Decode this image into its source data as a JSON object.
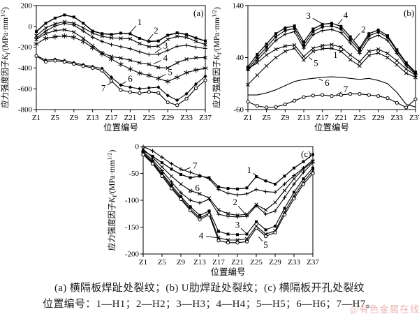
{
  "caption": {
    "line1": "(a) 横隔板焊趾处裂纹；(b) U肋焊趾处裂纹；(c) 横隔板开孔处裂纹",
    "line2": "位置编号：1—H1；2—H2；3—H3；4—H4；5—H5；6—H6；7—H7。"
  },
  "watermark": {
    "text": "@有色金属在线",
    "color": "#e9a9a9"
  },
  "chart_data": [
    {
      "type": "line",
      "panel_tag": "(a)",
      "xlabel": "位置编号",
      "ylabel_parts": [
        {
          "t": "应力强度因子"
        },
        {
          "t": "K",
          "i": true
        },
        {
          "t": "I",
          "sub": true
        },
        {
          "t": "/(MPa·mm"
        },
        {
          "t": "1/2",
          "sup": true
        },
        {
          "t": ")"
        }
      ],
      "xlim": [
        1,
        37
      ],
      "ylim": [
        -800,
        200
      ],
      "y_ticks": [
        200,
        0,
        -200,
        -400,
        -600,
        -800
      ],
      "x_ticks": {
        "values": [
          1,
          5,
          9,
          13,
          17,
          21,
          25,
          29,
          33,
          37
        ],
        "labels": [
          "Z1",
          "Z5",
          "Z9",
          "Z13",
          "Z17",
          "Z21",
          "Z25",
          "Z29",
          "Z33",
          "Z37"
        ]
      },
      "x": [
        1,
        3,
        5,
        7,
        9,
        11,
        13,
        15,
        17,
        19,
        21,
        23,
        25,
        27,
        29,
        31,
        33,
        35,
        37
      ],
      "grid": false,
      "series": [
        {
          "name": "1",
          "marker": "square",
          "w": 1.5,
          "values": [
            -50,
            30,
            80,
            110,
            90,
            30,
            -45,
            -70,
            -78,
            -65,
            -72,
            -115,
            -145,
            -140,
            -85,
            -62,
            -78,
            -112,
            -140
          ]
        },
        {
          "name": "2",
          "marker": "x",
          "values": [
            -90,
            -15,
            25,
            45,
            30,
            -15,
            -65,
            -95,
            -110,
            -115,
            -120,
            -165,
            -195,
            -190,
            -125,
            -95,
            -105,
            -145,
            -175
          ]
        },
        {
          "name": "3",
          "marker": "plus",
          "values": [
            -115,
            -45,
            5,
            28,
            12,
            -45,
            -105,
            -145,
            -175,
            -195,
            -215,
            -245,
            -270,
            -268,
            -230,
            -192,
            -182,
            -200,
            -212
          ]
        },
        {
          "name": "4",
          "marker": "x",
          "values": [
            -125,
            -70,
            -40,
            -32,
            -55,
            -115,
            -185,
            -255,
            -290,
            -305,
            -325,
            -350,
            -365,
            -395,
            -400,
            -350,
            -315,
            -302,
            -300
          ]
        },
        {
          "name": "5",
          "marker": "asterisk",
          "values": [
            -170,
            -115,
            -100,
            -92,
            -105,
            -145,
            -205,
            -265,
            -315,
            -365,
            -410,
            -450,
            -472,
            -502,
            -530,
            -490,
            -445,
            -420,
            -402
          ]
        },
        {
          "name": "6",
          "marker": "diamond",
          "values": [
            -280,
            -325,
            -318,
            -330,
            -350,
            -370,
            -388,
            -405,
            -490,
            -565,
            -585,
            -600,
            -592,
            -585,
            -665,
            -710,
            -648,
            -555,
            -480
          ]
        },
        {
          "name": "7",
          "marker": "circle",
          "values": [
            -285,
            -340,
            -330,
            -342,
            -362,
            -382,
            -400,
            -425,
            -525,
            -612,
            -632,
            -642,
            -630,
            -640,
            -730,
            -758,
            -695,
            -595,
            -518
          ]
        }
      ],
      "curve_labels": [
        {
          "t": "1",
          "x": 23,
          "y": 40,
          "tx": 20.8,
          "ty": -68
        },
        {
          "t": "2",
          "x": 26.5,
          "y": -40,
          "tx": 24.5,
          "ty": -150
        },
        {
          "t": "3",
          "x": 28.5,
          "y": -185,
          "tx": 26.3,
          "ty": -255
        },
        {
          "t": "4",
          "x": 28.5,
          "y": -308,
          "tx": 26,
          "ty": -360
        },
        {
          "t": "5",
          "x": 29.5,
          "y": -442,
          "tx": 27,
          "ty": -495
        },
        {
          "t": "6",
          "x": 21,
          "y": -505,
          "tx": 19.2,
          "ty": -558
        },
        {
          "t": "7",
          "x": 15.3,
          "y": -595,
          "tx": 17.2,
          "ty": -530
        }
      ]
    },
    {
      "type": "line",
      "panel_tag": "(b)",
      "xlabel": "位置编号",
      "ylabel_parts": [
        {
          "t": "应力强度因子"
        },
        {
          "t": "K",
          "i": true
        },
        {
          "t": "I",
          "sub": true
        },
        {
          "t": "/(MPa·mm"
        },
        {
          "t": "1/2",
          "sup": true
        },
        {
          "t": ")"
        }
      ],
      "xlim": [
        1,
        37
      ],
      "ylim": [
        -60,
        140
      ],
      "y_ticks": [
        140,
        40,
        -60
      ],
      "x_ticks": {
        "values": [
          1,
          5,
          9,
          13,
          17,
          21,
          25,
          29,
          33,
          37
        ],
        "labels": [
          "Z1",
          "Z5",
          "Z9",
          "Z13",
          "Z17",
          "Z21",
          "Z25",
          "Z29",
          "Z33",
          "Z37"
        ]
      },
      "x": [
        1,
        3,
        5,
        7,
        9,
        11,
        13,
        15,
        17,
        19,
        21,
        23,
        25,
        27,
        29,
        31,
        33,
        35,
        37
      ],
      "grid": false,
      "series": [
        {
          "name": "3",
          "marker": "square",
          "w": 1.3,
          "values": [
            22,
            46,
            66,
            86,
            97,
            101,
            70,
            95,
            104,
            106,
            100,
            80,
            58,
            86,
            93,
            82,
            55,
            30,
            12
          ]
        },
        {
          "name": "4",
          "marker": "square",
          "values": [
            18,
            40,
            60,
            80,
            92,
            96,
            64,
            90,
            99,
            101,
            95,
            74,
            54,
            82,
            89,
            79,
            53,
            28,
            10
          ]
        },
        {
          "name": "2",
          "marker": "plus",
          "values": [
            15,
            35,
            54,
            73,
            85,
            90,
            58,
            84,
            92,
            94,
            88,
            68,
            48,
            76,
            83,
            73,
            48,
            24,
            8
          ]
        },
        {
          "name": "1",
          "marker": "x",
          "values": [
            18,
            30,
            45,
            56,
            62,
            64,
            42,
            58,
            63,
            65,
            60,
            45,
            32,
            52,
            56,
            48,
            34,
            18,
            6
          ]
        },
        {
          "name": "5",
          "marker": "x",
          "values": [
            -12,
            6,
            24,
            40,
            52,
            58,
            35,
            52,
            57,
            58,
            52,
            36,
            24,
            44,
            49,
            40,
            26,
            10,
            2
          ]
        },
        {
          "name": "6",
          "marker": "none",
          "values": [
            -32,
            -32,
            -28,
            -22,
            -14,
            -6,
            -2,
            0,
            2,
            3,
            2,
            0,
            -2,
            0,
            -4,
            -10,
            -27,
            -50,
            -55
          ]
        },
        {
          "name": "7",
          "marker": "circle",
          "values": [
            -45,
            -53,
            -56,
            -55,
            -50,
            -43,
            -36,
            -33,
            -32,
            -34,
            -32,
            -30,
            -30,
            -32,
            -34,
            -38,
            -47,
            -56,
            -40
          ]
        }
      ],
      "curve_labels": [
        {
          "t": "3",
          "x": 14,
          "y": 120,
          "tx": 16.8,
          "ty": 106
        },
        {
          "t": "4",
          "x": 22,
          "y": 121,
          "tx": 20.3,
          "ty": 104
        },
        {
          "t": "2",
          "x": 25.8,
          "y": 94,
          "tx": 23.8,
          "ty": 74
        },
        {
          "t": "1",
          "x": 19.8,
          "y": 45,
          "tx": 21.8,
          "ty": 56
        },
        {
          "t": "5",
          "x": 15.6,
          "y": 29,
          "tx": 14.2,
          "ty": 40
        },
        {
          "t": "6",
          "x": 18,
          "y": -9,
          "tx": 16.3,
          "ty": -1
        },
        {
          "t": "7",
          "x": 22,
          "y": -21,
          "tx": 20,
          "ty": -32
        }
      ]
    },
    {
      "type": "line",
      "panel_tag": "(c)",
      "xlabel": "位置编号",
      "ylabel_parts": [
        {
          "t": "应力强度因子"
        },
        {
          "t": "K",
          "i": true
        },
        {
          "t": "I",
          "sub": true
        },
        {
          "t": "/(MPa·mm"
        },
        {
          "t": "1/2",
          "sup": true
        },
        {
          "t": ")"
        }
      ],
      "xlim": [
        1,
        37
      ],
      "ylim": [
        -200,
        0
      ],
      "y_ticks": [
        0,
        -50,
        -100,
        -150,
        -200
      ],
      "x_ticks": {
        "values": [
          1,
          5,
          9,
          13,
          17,
          21,
          25,
          29,
          33,
          37
        ],
        "labels": [
          "Z1",
          "Z5",
          "Z9",
          "Z13",
          "Z17",
          "Z21",
          "Z25",
          "Z29",
          "Z33",
          "Z37"
        ]
      },
      "x": [
        1,
        3,
        5,
        7,
        9,
        11,
        13,
        15,
        17,
        19,
        21,
        23,
        25,
        27,
        29,
        31,
        33,
        35,
        37
      ],
      "grid": false,
      "series": [
        {
          "name": "7",
          "marker": "plus",
          "values": [
            0,
            -8,
            -20,
            -32,
            -42,
            -48,
            -54,
            -60,
            -80,
            -87,
            -90,
            -88,
            -80,
            -84,
            -85,
            -70,
            -54,
            -40,
            -25
          ]
        },
        {
          "name": "1",
          "marker": "square",
          "w": 1.3,
          "values": [
            -8,
            -18,
            -30,
            -42,
            -52,
            -58,
            -55,
            -58,
            -75,
            -78,
            -79,
            -77,
            -56,
            -64,
            -70,
            -55,
            -40,
            -28,
            -15
          ]
        },
        {
          "name": "6",
          "marker": "x",
          "values": [
            -5,
            -20,
            -38,
            -55,
            -70,
            -82,
            -88,
            -96,
            -118,
            -125,
            -128,
            -126,
            -108,
            -118,
            -104,
            -82,
            -60,
            -42,
            -28
          ]
        },
        {
          "name": "2",
          "marker": "plus",
          "values": [
            -10,
            -25,
            -45,
            -66,
            -86,
            -100,
            -105,
            -98,
            -126,
            -130,
            -131,
            -130,
            -110,
            -126,
            -120,
            -95,
            -70,
            -48,
            -30
          ]
        },
        {
          "name": "3",
          "marker": "square",
          "values": [
            -12,
            -28,
            -50,
            -72,
            -93,
            -112,
            -128,
            -120,
            -158,
            -163,
            -164,
            -163,
            -140,
            -155,
            -148,
            -115,
            -85,
            -60,
            -40
          ]
        },
        {
          "name": "4",
          "marker": "x",
          "values": [
            -14,
            -30,
            -52,
            -75,
            -96,
            -116,
            -133,
            -124,
            -170,
            -174,
            -174,
            -172,
            -148,
            -163,
            -157,
            -122,
            -92,
            -66,
            -45
          ]
        },
        {
          "name": "5",
          "marker": "circle",
          "values": [
            -15,
            -32,
            -55,
            -78,
            -98,
            -119,
            -136,
            -127,
            -175,
            -179,
            -179,
            -177,
            -152,
            -167,
            -160,
            -127,
            -97,
            -70,
            -50
          ]
        }
      ],
      "curve_labels": [
        {
          "t": "7",
          "x": 12,
          "y": -36,
          "tx": 9.3,
          "ty": -45
        },
        {
          "t": "1",
          "x": 23.5,
          "y": -44,
          "tx": 25,
          "ty": -54
        },
        {
          "t": "6",
          "x": 12.5,
          "y": -77,
          "tx": 10.8,
          "ty": -86
        },
        {
          "t": "2",
          "x": 20.5,
          "y": -104,
          "tx": 22.8,
          "ty": -127
        },
        {
          "t": "3",
          "x": 21,
          "y": -146,
          "tx": 22.8,
          "ty": -161
        },
        {
          "t": "4",
          "x": 13.3,
          "y": -166,
          "tx": 17,
          "ty": -170
        },
        {
          "t": "5",
          "x": 27,
          "y": -183,
          "tx": 25.5,
          "ty": -168
        }
      ]
    }
  ]
}
